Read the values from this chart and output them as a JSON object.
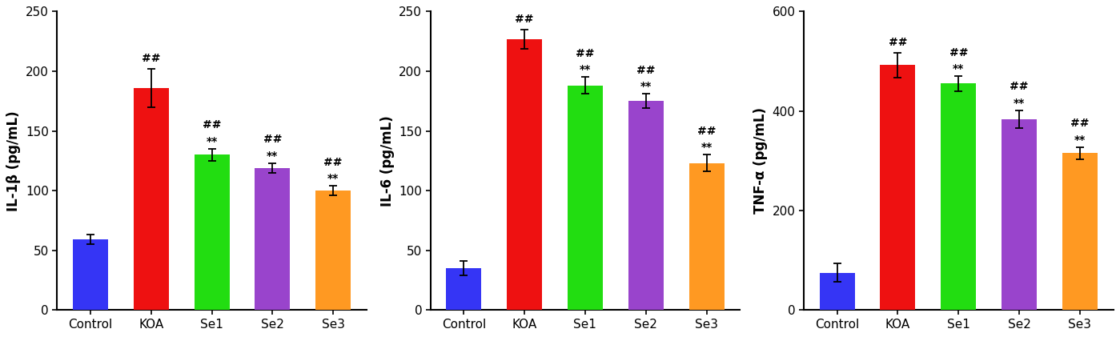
{
  "categories": [
    "Control",
    "KOA",
    "Se1",
    "Se2",
    "Se3"
  ],
  "bar_colors": [
    "#3535F5",
    "#EE1111",
    "#22DD11",
    "#9944CC",
    "#FF9922"
  ],
  "charts": [
    {
      "ylabel": "IL-1β (pg/mL)",
      "ylim": [
        0,
        250
      ],
      "yticks": [
        0,
        50,
        100,
        150,
        200,
        250
      ],
      "values": [
        59,
        186,
        130,
        119,
        100
      ],
      "errors": [
        4,
        16,
        5,
        4,
        4
      ],
      "annotations": [
        {
          "show_hash": false,
          "show_star": false
        },
        {
          "show_hash": true,
          "show_star": false
        },
        {
          "show_hash": true,
          "show_star": true
        },
        {
          "show_hash": true,
          "show_star": true
        },
        {
          "show_hash": true,
          "show_star": true
        }
      ]
    },
    {
      "ylabel": "IL-6 (pg/mL)",
      "ylim": [
        0,
        250
      ],
      "yticks": [
        0,
        50,
        100,
        150,
        200,
        250
      ],
      "values": [
        35,
        227,
        188,
        175,
        123
      ],
      "errors": [
        6,
        8,
        7,
        6,
        7
      ],
      "annotations": [
        {
          "show_hash": false,
          "show_star": false
        },
        {
          "show_hash": true,
          "show_star": false
        },
        {
          "show_hash": true,
          "show_star": true
        },
        {
          "show_hash": true,
          "show_star": true
        },
        {
          "show_hash": true,
          "show_star": true
        }
      ]
    },
    {
      "ylabel": "TNF-α (pg/mL)",
      "ylim": [
        0,
        600
      ],
      "yticks": [
        0,
        200,
        400,
        600
      ],
      "values": [
        75,
        492,
        455,
        383,
        315
      ],
      "errors": [
        18,
        25,
        15,
        18,
        12
      ],
      "annotations": [
        {
          "show_hash": false,
          "show_star": false
        },
        {
          "show_hash": true,
          "show_star": false
        },
        {
          "show_hash": true,
          "show_star": true
        },
        {
          "show_hash": true,
          "show_star": true
        },
        {
          "show_hash": true,
          "show_star": true
        }
      ]
    }
  ],
  "annotation_fontsize": 10,
  "tick_fontsize": 11,
  "ylabel_fontsize": 12,
  "bar_width": 0.58
}
